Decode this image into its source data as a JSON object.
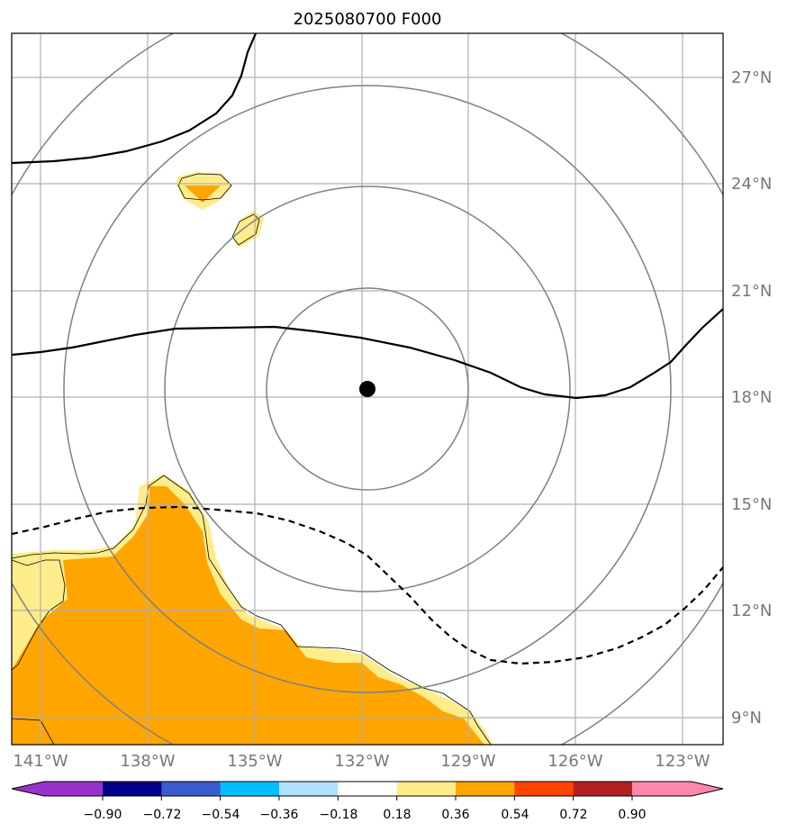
{
  "title": "2025080700 F000",
  "latitude_labels": [
    "27°N",
    "24°N",
    "21°N",
    "18°N",
    "15°N",
    "12°N",
    "9°N"
  ],
  "longitude_labels": [
    "141°W",
    "138°W",
    "135°W",
    "132°W",
    "129°W",
    "126°W",
    "123°W"
  ],
  "colorbar": {
    "tick_labels": [
      "−0.90",
      "−0.72",
      "−0.54",
      "−0.36",
      "−0.18",
      "0.18",
      "0.36",
      "0.54",
      "0.72",
      "0.90"
    ],
    "colors": {
      "under": "#9932cc",
      "bins": [
        "#00008b",
        "#3a5bd0",
        "#00bfff",
        "#b0e0ff",
        "#ffffff",
        "#ffec8b",
        "#ffa500",
        "#ff4500",
        "#b22222"
      ],
      "over": "#ff88aa"
    }
  },
  "map_colors": {
    "fill_light": "#ffec8b",
    "fill_dark": "#ffa500",
    "range_rings": "#808080",
    "gridlines": "#b0b0b0",
    "contours": "#000000"
  },
  "storm_center_icon": "filled-black-circle"
}
